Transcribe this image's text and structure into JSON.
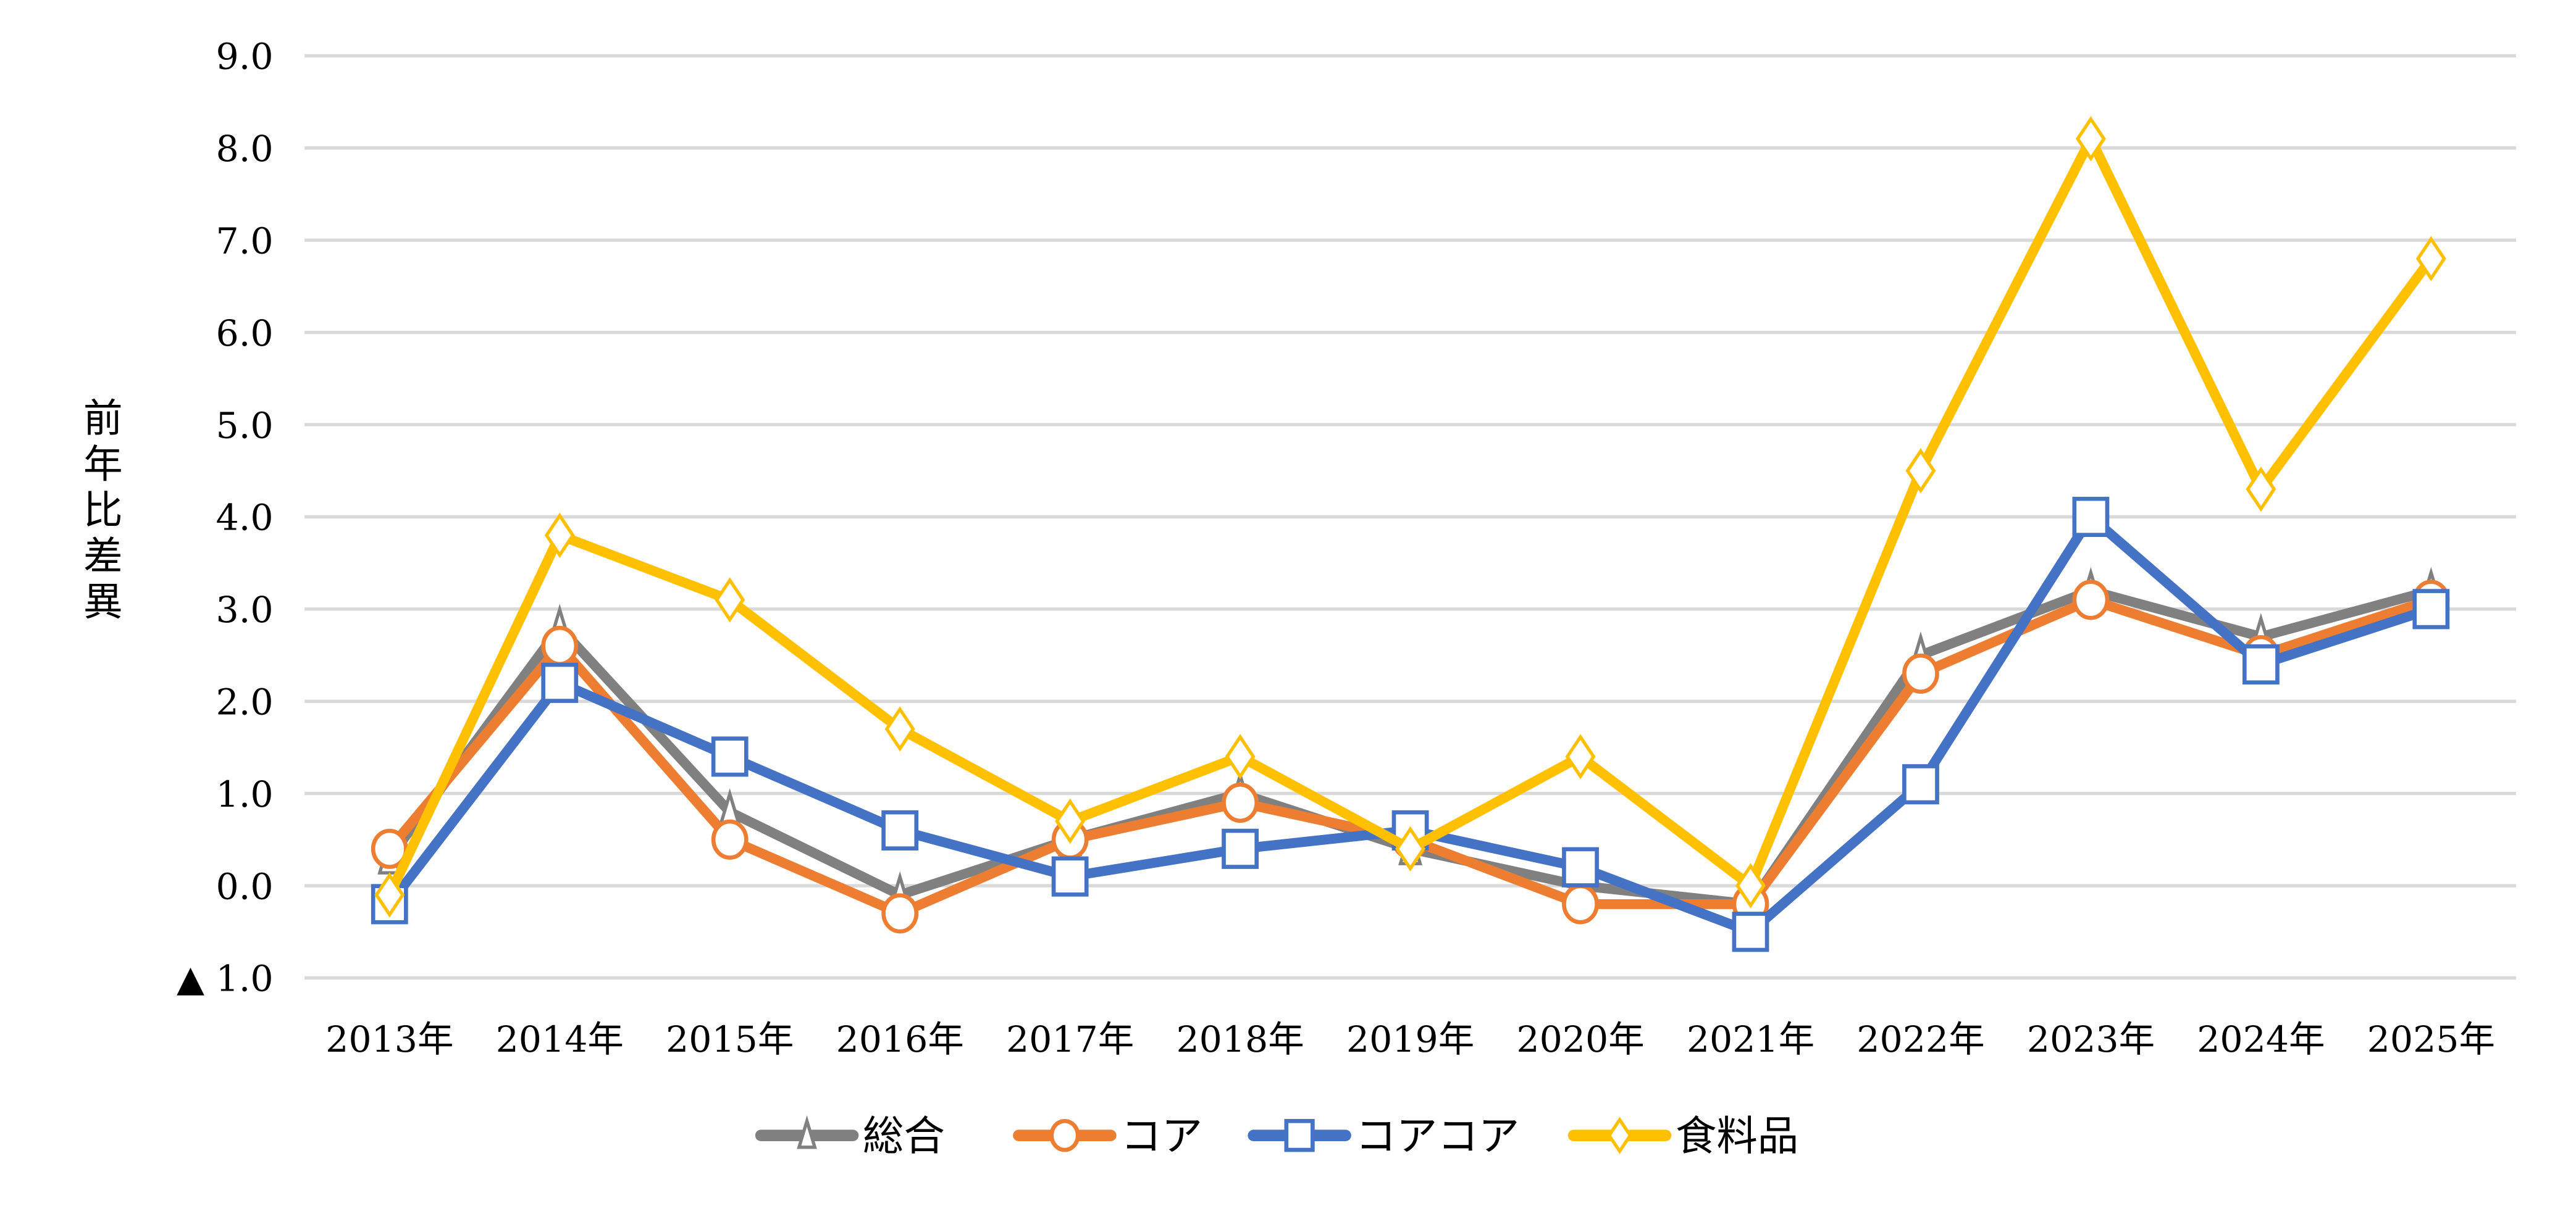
{
  "chart_data": {
    "type": "line",
    "title": "",
    "xlabel": "",
    "ylabel": "前年比差異",
    "categories": [
      "2013年",
      "2014年",
      "2015年",
      "2016年",
      "2017年",
      "2018年",
      "2019年",
      "2020年",
      "2021年",
      "2022年",
      "2023年",
      "2024年",
      "2025年"
    ],
    "ylim": [
      -1.0,
      9.0
    ],
    "yticks": [
      9.0,
      8.0,
      7.0,
      6.0,
      5.0,
      4.0,
      3.0,
      2.0,
      1.0,
      0.0,
      -1.0
    ],
    "ytick_labels": [
      "9.0",
      "8.0",
      "7.0",
      "6.0",
      "5.0",
      "4.0",
      "3.0",
      "2.0",
      "1.0",
      "0.0",
      "▲ 1.0"
    ],
    "grid": "horizontal",
    "legend_position": "bottom",
    "series": [
      {
        "name": "総合",
        "color": "#808080",
        "marker": "triangle",
        "values": [
          0.3,
          2.8,
          0.8,
          -0.1,
          0.5,
          1.0,
          0.4,
          0.0,
          -0.2,
          2.5,
          3.2,
          2.7,
          3.2
        ]
      },
      {
        "name": "コア",
        "color": "#ED7D31",
        "marker": "circle",
        "values": [
          0.4,
          2.6,
          0.5,
          -0.3,
          0.5,
          0.9,
          0.5,
          -0.2,
          -0.2,
          2.3,
          3.1,
          2.5,
          3.1
        ]
      },
      {
        "name": "コアコア",
        "color": "#4472C4",
        "marker": "square",
        "values": [
          -0.2,
          2.2,
          1.4,
          0.6,
          0.1,
          0.4,
          0.6,
          0.2,
          -0.5,
          1.1,
          4.0,
          2.4,
          3.0
        ]
      },
      {
        "name": "食料品",
        "color": "#FFC000",
        "marker": "diamond",
        "values": [
          -0.1,
          3.8,
          3.1,
          1.7,
          0.7,
          1.4,
          0.4,
          1.4,
          0.0,
          4.5,
          8.1,
          4.3,
          6.8
        ]
      }
    ]
  }
}
